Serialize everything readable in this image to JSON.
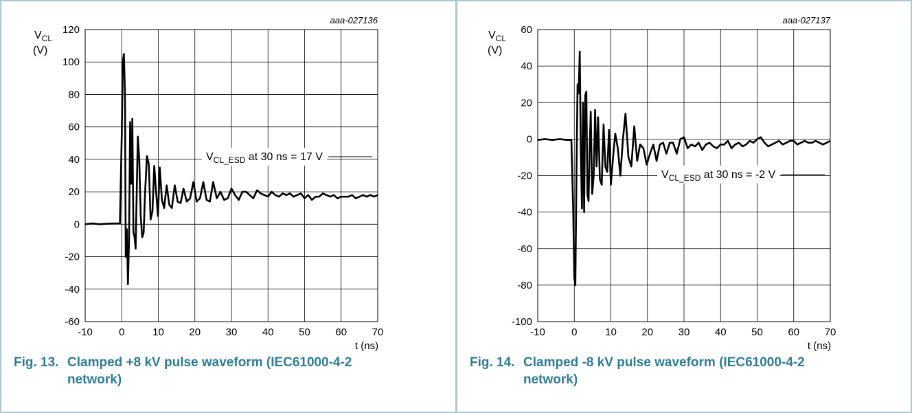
{
  "colors": {
    "caption": "#2f7c95",
    "border": "#aac8d4",
    "grid": "#000000",
    "trace": "#000000"
  },
  "figures": [
    {
      "caption_number": "Fig. 13.",
      "caption_line1": "Clamped +8 kV pulse waveform (IEC61000-4-2",
      "caption_line2": "network)",
      "code": "aaa-027136",
      "ylabel_main": "V",
      "ylabel_sub": "CL",
      "ylabel_unit": "(V)",
      "xlabel": "t (ns)",
      "annotation_main": "V",
      "annotation_sub": "CL_ESD",
      "annotation_rest": " at 30 ns = 17 V"
    },
    {
      "caption_number": "Fig. 14.",
      "caption_line1": "Clamped -8 kV pulse waveform (IEC61000-4-2",
      "caption_line2": "network)",
      "code": "aaa-027137",
      "ylabel_main": "V",
      "ylabel_sub": "CL",
      "ylabel_unit": "(V)",
      "xlabel": "t (ns)",
      "annotation_main": "V",
      "annotation_sub": "CL_ESD",
      "annotation_rest": " at 30 ns = -2 V"
    }
  ],
  "chart_data": [
    {
      "type": "line",
      "xlim": [
        -10,
        70
      ],
      "ylim": [
        -60,
        120
      ],
      "xticks": [
        "-10",
        "0",
        "10",
        "20",
        "30",
        "40",
        "50",
        "60",
        "70"
      ],
      "yticks": [
        "-60",
        "-40",
        "-20",
        "0",
        "20",
        "40",
        "60",
        "80",
        "100",
        "120"
      ],
      "grid": true,
      "series": [
        {
          "x": [
            -10,
            -8,
            -6,
            -4,
            -2,
            -0.5,
            0,
            0.3,
            0.6,
            0.9,
            1.1,
            1.4,
            1.7,
            2.0,
            2.3,
            2.6,
            2.9,
            3.2,
            3.5,
            3.8,
            4.1,
            4.4,
            4.8,
            5.2,
            5.6,
            6.0,
            6.4,
            6.9,
            7.4,
            7.9,
            8.4,
            8.9,
            9.4,
            9.9,
            10.4,
            11.0,
            11.6,
            12.3,
            13.0,
            13.7,
            14.5,
            15.3,
            16.1,
            16.9,
            17.8,
            18.7,
            19.6,
            20.5,
            21.4,
            22.3,
            23.2,
            24.1,
            25.0,
            26,
            27,
            28,
            29,
            30,
            31,
            32,
            33,
            34,
            35,
            36,
            37,
            38,
            39,
            40,
            41,
            42,
            43,
            44,
            45,
            46,
            47,
            48,
            49,
            50,
            51,
            52,
            53,
            54,
            55,
            56,
            57,
            58,
            59,
            60,
            61,
            62,
            63,
            64,
            65,
            66,
            67,
            68,
            69,
            70
          ],
          "y": [
            0,
            0.5,
            0,
            0.3,
            0.5,
            0.5,
            55,
            100,
            105,
            80,
            -20,
            -3,
            -37,
            -10,
            63,
            25,
            65,
            -5,
            -8,
            -15,
            20,
            54,
            40,
            5,
            -8,
            -5,
            20,
            42,
            37,
            3,
            8,
            36,
            20,
            5,
            35,
            15,
            10,
            24,
            12,
            10,
            24,
            14,
            13,
            22,
            14,
            16,
            26,
            14,
            16,
            26,
            15,
            14,
            26,
            16,
            20,
            15,
            16,
            22,
            18,
            15,
            20,
            20,
            18,
            16,
            21,
            19,
            18,
            17,
            20,
            18,
            17,
            19,
            18,
            19,
            17,
            18,
            19,
            16,
            18,
            15,
            17,
            17,
            19,
            18,
            17,
            18,
            16,
            17,
            17,
            17,
            18,
            16,
            17,
            18,
            17,
            18,
            17,
            18
          ]
        }
      ]
    },
    {
      "type": "line",
      "xlim": [
        -10,
        70
      ],
      "ylim": [
        -100,
        60
      ],
      "xticks": [
        "-10",
        "0",
        "10",
        "20",
        "30",
        "40",
        "50",
        "60",
        "70"
      ],
      "yticks": [
        "-100",
        "-80",
        "-60",
        "-40",
        "-20",
        "0",
        "20",
        "40",
        "60"
      ],
      "grid": true,
      "series": [
        {
          "x": [
            -10,
            -8,
            -6,
            -4,
            -2,
            -0.8,
            -0.3,
            0,
            0.3,
            0.6,
            0.9,
            1.2,
            1.5,
            1.8,
            2.1,
            2.4,
            2.7,
            3.0,
            3.3,
            3.6,
            3.9,
            4.2,
            4.5,
            4.9,
            5.3,
            5.7,
            6.1,
            6.5,
            7.0,
            7.5,
            8.0,
            8.5,
            9.0,
            9.5,
            10.0,
            10.6,
            11.2,
            11.9,
            12.6,
            13.3,
            14.0,
            14.8,
            15.6,
            16.4,
            17.2,
            18.0,
            18.9,
            19.8,
            20.7,
            21.6,
            22.5,
            23.4,
            24.3,
            25.2,
            26.1,
            27,
            28,
            29,
            30,
            31,
            32,
            33,
            34,
            35,
            36,
            37,
            38,
            39,
            40,
            41,
            42,
            43,
            44,
            45,
            46,
            47,
            48,
            49,
            50,
            51,
            52,
            53,
            54,
            55,
            56,
            57,
            58,
            59,
            60,
            61,
            62,
            63,
            64,
            65,
            66,
            67,
            68,
            69,
            70
          ],
          "y": [
            -0.5,
            0,
            -0.5,
            0,
            -0.5,
            -0.5,
            -40,
            -76,
            -80,
            -20,
            30,
            25,
            48,
            -8,
            -38,
            20,
            -40,
            24,
            26,
            -30,
            -34,
            -5,
            15,
            -30,
            -20,
            16,
            -15,
            12,
            -22,
            -25,
            8,
            -15,
            -18,
            5,
            -25,
            -10,
            3,
            -5,
            -20,
            0,
            14,
            -10,
            -15,
            7,
            -12,
            -3,
            -5,
            -14,
            -8,
            -3,
            -12,
            -3,
            -2,
            -8,
            -2,
            -2,
            -8,
            0,
            1,
            -5,
            -3,
            -4,
            -2,
            -6,
            -3,
            -2,
            -4,
            -5,
            -3,
            -3,
            -1,
            -5,
            -3,
            -2,
            -4,
            -3,
            -1,
            -2,
            0,
            1,
            -2,
            -4,
            -3,
            -2,
            -1,
            -3,
            -2,
            -1,
            -1,
            -3,
            -2,
            -1,
            -2,
            -2,
            -1,
            -2,
            -3,
            -2,
            -1
          ]
        }
      ]
    }
  ]
}
